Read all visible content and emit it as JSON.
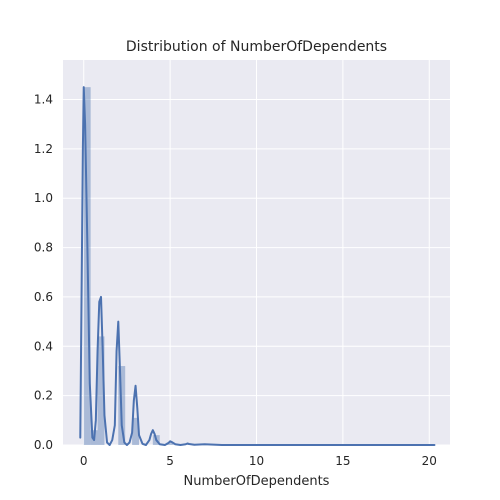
{
  "chart_data": {
    "type": "histogram+kde",
    "title": "Distribution of NumberOfDependents",
    "xlabel": "NumberOfDependents",
    "ylabel": "",
    "xlim": [
      -1.2,
      21.2
    ],
    "ylim": [
      0,
      1.56
    ],
    "grid": true,
    "x_ticks": [
      0,
      5,
      10,
      15,
      20
    ],
    "y_ticks": [
      0.0,
      0.2,
      0.4,
      0.6,
      0.8,
      1.0,
      1.2,
      1.4
    ],
    "x_tick_labels": [
      "0",
      "5",
      "10",
      "15",
      "20"
    ],
    "y_tick_labels": [
      "0.0",
      "0.2",
      "0.4",
      "0.6",
      "0.8",
      "1.0",
      "1.2",
      "1.4"
    ],
    "histogram": {
      "bin_width": 0.4,
      "bins": [
        {
          "x0": 0.0,
          "density": 1.45
        },
        {
          "x0": 0.4,
          "density": 0.06
        },
        {
          "x0": 0.8,
          "density": 0.44
        },
        {
          "x0": 1.2,
          "density": 0.0
        },
        {
          "x0": 1.6,
          "density": 0.0
        },
        {
          "x0": 2.0,
          "density": 0.32
        },
        {
          "x0": 2.4,
          "density": 0.0
        },
        {
          "x0": 2.8,
          "density": 0.11
        },
        {
          "x0": 3.2,
          "density": 0.0
        },
        {
          "x0": 3.6,
          "density": 0.0
        },
        {
          "x0": 4.0,
          "density": 0.04
        },
        {
          "x0": 4.4,
          "density": 0.0
        },
        {
          "x0": 4.8,
          "density": 0.01
        },
        {
          "x0": 5.2,
          "density": 0.0
        },
        {
          "x0": 5.6,
          "density": 0.0
        },
        {
          "x0": 6.0,
          "density": 0.005
        }
      ]
    },
    "kde": {
      "x": [
        -0.2,
        -0.05,
        0.0,
        0.08,
        0.2,
        0.35,
        0.5,
        0.6,
        0.7,
        0.8,
        0.9,
        1.0,
        1.1,
        1.2,
        1.35,
        1.5,
        1.65,
        1.8,
        1.9,
        2.0,
        2.1,
        2.2,
        2.35,
        2.5,
        2.65,
        2.8,
        2.9,
        3.0,
        3.1,
        3.2,
        3.4,
        3.6,
        3.8,
        3.9,
        4.0,
        4.1,
        4.2,
        4.4,
        4.7,
        4.9,
        5.0,
        5.1,
        5.3,
        5.6,
        5.9,
        6.0,
        6.1,
        6.4,
        7.0,
        8.0,
        10.0,
        14.0,
        18.0,
        20.3
      ],
      "y": [
        0.03,
        1.2,
        1.45,
        1.3,
        0.85,
        0.25,
        0.03,
        0.02,
        0.1,
        0.38,
        0.58,
        0.6,
        0.38,
        0.12,
        0.01,
        0.0,
        0.02,
        0.08,
        0.38,
        0.5,
        0.3,
        0.08,
        0.01,
        0.0,
        0.01,
        0.05,
        0.18,
        0.24,
        0.15,
        0.04,
        0.005,
        0.0,
        0.02,
        0.045,
        0.06,
        0.045,
        0.02,
        0.003,
        0.0,
        0.008,
        0.015,
        0.012,
        0.003,
        0.0,
        0.003,
        0.006,
        0.004,
        0.001,
        0.003,
        0.0,
        0.0,
        0.0,
        0.0,
        0.0
      ]
    },
    "colors": {
      "background": "#eaeaf2",
      "grid": "#ffffff",
      "bar_fill": "#4c72b0",
      "bar_opacity": 0.4,
      "line": "#4c72b0",
      "text": "#262626"
    }
  }
}
